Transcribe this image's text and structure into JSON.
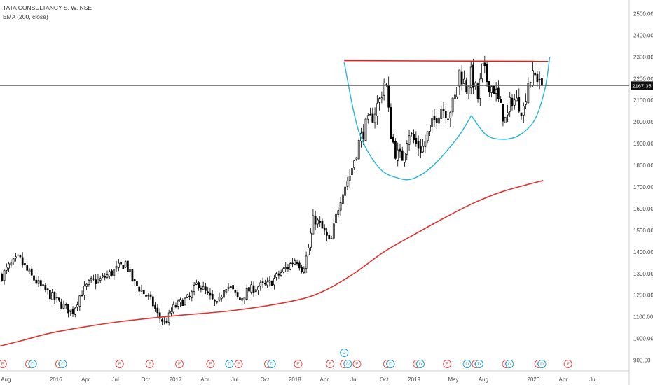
{
  "legend": {
    "symbol_line": "TATA CONSULTANCY S, W, NSE",
    "indicator": "EMA (200, close)"
  },
  "colors": {
    "background": "#ffffff",
    "candle_up": "#ffffff",
    "candle_down": "#000000",
    "wick": "#000000",
    "ema": "#e03030",
    "pattern_curve": "#29b6d6",
    "resistance": "#e02020",
    "price_line": "#555555",
    "price_tag_bg": "#111111",
    "earnings_badge": "#e05050",
    "dividend_badge": "#2aa0c8",
    "split_badge": "#e05050"
  },
  "chart_data": {
    "type": "candlestick",
    "title": "TATA CONSULTANCY S, W, NSE",
    "indicator_label": "EMA (200, close)",
    "y_range": [
      850,
      2550
    ],
    "y_ticks": [
      900,
      1000,
      1100,
      1200,
      1300,
      1400,
      1500,
      1600,
      1700,
      1800,
      1900,
      2000,
      2100,
      2200,
      2300,
      2400,
      2500
    ],
    "y_tick_labels": [
      "900.00",
      "1000.00",
      "1100.00",
      "1200.00",
      "1300.00",
      "1400.00",
      "1500.00",
      "1600.00",
      "1700.00",
      "1800.00",
      "1900.00",
      "2000.00",
      "2100.00",
      "2200.00",
      "2300.00",
      "2400.00",
      "2500.00"
    ],
    "x_range": [
      "2015-07-14",
      "2020-10-20"
    ],
    "x_ticks": [
      {
        "date": "2015-08-01",
        "label": "Aug"
      },
      {
        "date": "2016-01-01",
        "label": "2016"
      },
      {
        "date": "2016-04-01",
        "label": "Apr"
      },
      {
        "date": "2016-07-01",
        "label": "Jul"
      },
      {
        "date": "2016-10-01",
        "label": "Oct"
      },
      {
        "date": "2017-01-01",
        "label": "2017"
      },
      {
        "date": "2017-04-01",
        "label": "Apr"
      },
      {
        "date": "2017-07-01",
        "label": "Jul"
      },
      {
        "date": "2017-10-01",
        "label": "Oct"
      },
      {
        "date": "2018-01-01",
        "label": "2018"
      },
      {
        "date": "2018-04-01",
        "label": "Apr"
      },
      {
        "date": "2018-07-01",
        "label": "Jul"
      },
      {
        "date": "2018-10-01",
        "label": "Oct"
      },
      {
        "date": "2019-01-01",
        "label": "2019"
      },
      {
        "date": "2019-05-01",
        "label": "May"
      },
      {
        "date": "2019-08-01",
        "label": "Aug"
      },
      {
        "date": "2020-01-01",
        "label": "2020"
      },
      {
        "date": "2020-04-01",
        "label": "Apr"
      },
      {
        "date": "2020-07-01",
        "label": "Jul"
      }
    ],
    "last_price": 2167.35,
    "last_price_label": "2167.35",
    "close_path": [
      [
        "2015-07-20",
        1290
      ],
      [
        "2015-08-10",
        1330
      ],
      [
        "2015-09-10",
        1370
      ],
      [
        "2015-10-10",
        1300
      ],
      [
        "2015-11-15",
        1240
      ],
      [
        "2015-12-15",
        1200
      ],
      [
        "2016-01-15",
        1160
      ],
      [
        "2016-02-20",
        1120
      ],
      [
        "2016-03-15",
        1200
      ],
      [
        "2016-04-15",
        1260
      ],
      [
        "2016-05-15",
        1270
      ],
      [
        "2016-06-15",
        1300
      ],
      [
        "2016-07-15",
        1330
      ],
      [
        "2016-08-01",
        1350
      ],
      [
        "2016-08-25",
        1260
      ],
      [
        "2016-09-20",
        1220
      ],
      [
        "2016-10-20",
        1170
      ],
      [
        "2016-11-10",
        1100
      ],
      [
        "2016-12-01",
        1070
      ],
      [
        "2016-12-25",
        1140
      ],
      [
        "2017-01-20",
        1170
      ],
      [
        "2017-02-15",
        1190
      ],
      [
        "2017-03-10",
        1260
      ],
      [
        "2017-03-25",
        1230
      ],
      [
        "2017-04-20",
        1180
      ],
      [
        "2017-05-10",
        1150
      ],
      [
        "2017-06-01",
        1250
      ],
      [
        "2017-06-20",
        1230
      ],
      [
        "2017-07-15",
        1175
      ],
      [
        "2017-08-10",
        1220
      ],
      [
        "2017-09-10",
        1240
      ],
      [
        "2017-10-10",
        1245
      ],
      [
        "2017-11-10",
        1290
      ],
      [
        "2017-12-10",
        1330
      ],
      [
        "2018-01-05",
        1370
      ],
      [
        "2018-01-25",
        1320
      ],
      [
        "2018-02-10",
        1400
      ],
      [
        "2018-02-28",
        1560
      ],
      [
        "2018-03-20",
        1520
      ],
      [
        "2018-04-05",
        1480
      ],
      [
        "2018-04-20",
        1430
      ],
      [
        "2018-05-05",
        1550
      ],
      [
        "2018-05-25",
        1680
      ],
      [
        "2018-06-20",
        1760
      ],
      [
        "2018-07-15",
        1900
      ],
      [
        "2018-08-05",
        1980
      ],
      [
        "2018-08-25",
        2020
      ],
      [
        "2018-09-20",
        2110
      ],
      [
        "2018-10-05",
        2210
      ],
      [
        "2018-10-20",
        1960
      ],
      [
        "2018-11-05",
        1860
      ],
      [
        "2018-11-25",
        1830
      ],
      [
        "2018-12-15",
        1960
      ],
      [
        "2019-01-05",
        1900
      ],
      [
        "2019-01-25",
        1870
      ],
      [
        "2019-02-15",
        1960
      ],
      [
        "2019-03-05",
        2010
      ],
      [
        "2019-03-25",
        2070
      ],
      [
        "2019-04-15",
        2040
      ],
      [
        "2019-05-05",
        2100
      ],
      [
        "2019-05-20",
        2230
      ],
      [
        "2019-06-10",
        2160
      ],
      [
        "2019-06-25",
        2220
      ],
      [
        "2019-07-15",
        2110
      ],
      [
        "2019-07-30",
        2250
      ],
      [
        "2019-08-15",
        2180
      ],
      [
        "2019-09-05",
        2150
      ],
      [
        "2019-09-25",
        2050
      ],
      [
        "2019-10-10",
        2000
      ],
      [
        "2019-10-25",
        2110
      ],
      [
        "2019-11-15",
        2090
      ],
      [
        "2019-12-01",
        2050
      ],
      [
        "2019-12-15",
        2190
      ],
      [
        "2020-01-05",
        2210
      ],
      [
        "2020-01-20",
        2200
      ],
      [
        "2020-01-31",
        2167
      ]
    ],
    "ema_path": [
      [
        "2015-07-14",
        965
      ],
      [
        "2015-10-01",
        995
      ],
      [
        "2016-01-01",
        1030
      ],
      [
        "2016-07-01",
        1075
      ],
      [
        "2017-01-01",
        1105
      ],
      [
        "2017-07-01",
        1130
      ],
      [
        "2018-01-01",
        1175
      ],
      [
        "2018-04-01",
        1220
      ],
      [
        "2018-07-01",
        1300
      ],
      [
        "2018-10-01",
        1400
      ],
      [
        "2019-01-01",
        1480
      ],
      [
        "2019-04-01",
        1555
      ],
      [
        "2019-07-01",
        1625
      ],
      [
        "2019-10-01",
        1680
      ],
      [
        "2020-01-31",
        1730
      ]
    ],
    "resistance_line": {
      "from": [
        "2018-06-01",
        2283
      ],
      "to": [
        "2020-02-15",
        2280
      ]
    },
    "cup_curve": [
      [
        "2018-06-01",
        2275
      ],
      [
        "2018-07-15",
        1960
      ],
      [
        "2018-09-15",
        1790
      ],
      [
        "2018-11-15",
        1740
      ],
      [
        "2019-01-01",
        1740
      ],
      [
        "2019-03-01",
        1800
      ],
      [
        "2019-05-15",
        1930
      ],
      [
        "2019-06-25",
        2030
      ]
    ],
    "handle_curve": [
      [
        "2019-06-25",
        2030
      ],
      [
        "2019-08-10",
        1940
      ],
      [
        "2019-10-01",
        1920
      ],
      [
        "2019-11-20",
        1940
      ],
      [
        "2020-01-05",
        2010
      ],
      [
        "2020-02-05",
        2150
      ],
      [
        "2020-02-20",
        2300
      ]
    ],
    "events": [
      {
        "date": "2015-07-22",
        "kind": "E"
      },
      {
        "date": "2015-10-12",
        "kind": "E"
      },
      {
        "date": "2015-10-22",
        "kind": "D"
      },
      {
        "date": "2016-01-12",
        "kind": "E"
      },
      {
        "date": "2016-01-22",
        "kind": "D"
      },
      {
        "date": "2016-07-14",
        "kind": "E"
      },
      {
        "date": "2016-10-14",
        "kind": "E"
      },
      {
        "date": "2017-01-13",
        "kind": "E"
      },
      {
        "date": "2017-04-18",
        "kind": "E"
      },
      {
        "date": "2017-06-15",
        "kind": "D"
      },
      {
        "date": "2017-07-13",
        "kind": "E"
      },
      {
        "date": "2017-10-12",
        "kind": "E"
      },
      {
        "date": "2017-10-22",
        "kind": "D"
      },
      {
        "date": "2018-01-11",
        "kind": "E"
      },
      {
        "date": "2018-04-19",
        "kind": "E"
      },
      {
        "date": "2018-06-01",
        "kind": "S"
      },
      {
        "date": "2018-06-12",
        "kind": "D"
      },
      {
        "date": "2018-07-10",
        "kind": "E"
      },
      {
        "date": "2018-10-11",
        "kind": "E"
      },
      {
        "date": "2018-10-21",
        "kind": "D"
      },
      {
        "date": "2019-01-10",
        "kind": "E"
      },
      {
        "date": "2019-01-20",
        "kind": "D"
      },
      {
        "date": "2019-04-12",
        "kind": "E"
      },
      {
        "date": "2019-06-12",
        "kind": "D"
      },
      {
        "date": "2019-07-09",
        "kind": "E"
      },
      {
        "date": "2019-07-19",
        "kind": "D"
      },
      {
        "date": "2019-10-10",
        "kind": "E"
      },
      {
        "date": "2019-10-20",
        "kind": "D"
      },
      {
        "date": "2020-01-17",
        "kind": "E"
      },
      {
        "date": "2020-01-27",
        "kind": "D"
      },
      {
        "date": "2020-04-16",
        "kind": "E"
      }
    ],
    "stacked_event": {
      "date": "2018-06-01",
      "kind": "D"
    },
    "grid": false,
    "legend_placement": "top-left"
  }
}
